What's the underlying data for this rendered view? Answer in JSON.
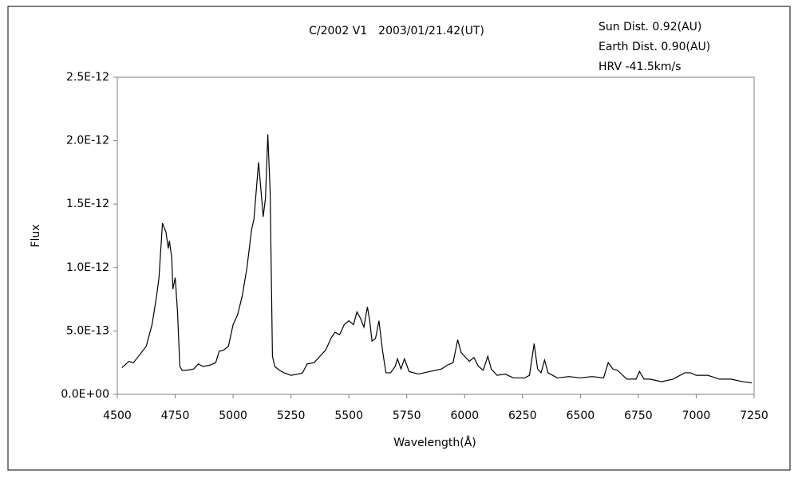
{
  "chart_data": {
    "type": "line",
    "title": "C/2002 V1　2003/01/21.42(UT)",
    "annotations": [
      "Sun Dist. 0.92(AU)",
      "Earth Dist. 0.90(AU)",
      "HRV -41.5km/s"
    ],
    "x_label": "Wavelength(Å)",
    "y_label": "Flux",
    "xlim": [
      4500,
      7250
    ],
    "xticks": [
      4500,
      4750,
      5000,
      5250,
      5500,
      5750,
      6000,
      6250,
      6500,
      6750,
      7000,
      7250
    ],
    "ylim": [
      0,
      2.5e-12
    ],
    "yticks": [
      {
        "value": 0,
        "label": "0.0E+00"
      },
      {
        "value": 5e-13,
        "label": "5.0E-13"
      },
      {
        "value": 1e-12,
        "label": "1.0E-12"
      },
      {
        "value": 1.5e-12,
        "label": "1.5E-12"
      },
      {
        "value": 2e-12,
        "label": "2.0E-12"
      },
      {
        "value": 2.5e-12,
        "label": "2.5E-12"
      }
    ],
    "grid": false,
    "x": [
      4520,
      4550,
      4570,
      4600,
      4625,
      4650,
      4670,
      4680,
      4695,
      4710,
      4720,
      4725,
      4735,
      4740,
      4750,
      4760,
      4770,
      4780,
      4800,
      4830,
      4850,
      4870,
      4900,
      4925,
      4940,
      4960,
      4980,
      5000,
      5020,
      5040,
      5060,
      5080,
      5090,
      5110,
      5120,
      5130,
      5140,
      5150,
      5160,
      5170,
      5180,
      5200,
      5220,
      5250,
      5280,
      5300,
      5320,
      5350,
      5375,
      5400,
      5425,
      5440,
      5460,
      5480,
      5500,
      5520,
      5535,
      5550,
      5565,
      5580,
      5590,
      5600,
      5615,
      5630,
      5645,
      5660,
      5680,
      5700,
      5710,
      5725,
      5740,
      5760,
      5800,
      5850,
      5900,
      5925,
      5950,
      5970,
      5985,
      6000,
      6020,
      6040,
      6060,
      6080,
      6100,
      6115,
      6140,
      6175,
      6210,
      6260,
      6280,
      6300,
      6315,
      6330,
      6345,
      6360,
      6400,
      6450,
      6500,
      6550,
      6600,
      6620,
      6640,
      6660,
      6700,
      6740,
      6755,
      6775,
      6800,
      6850,
      6900,
      6950,
      6975,
      7000,
      7050,
      7100,
      7150,
      7200,
      7240
    ],
    "series": [
      {
        "name": "Flux",
        "color": "#000000",
        "values": [
          2.1e-13,
          2.6e-13,
          2.5e-13,
          3.2e-13,
          3.8e-13,
          5.5e-13,
          7.8e-13,
          9.2e-13,
          1.35e-12,
          1.28e-12,
          1.15e-12,
          1.21e-12,
          1.08e-12,
          8.3e-13,
          9.2e-13,
          6.5e-13,
          2.2e-13,
          1.9e-13,
          1.9e-13,
          2e-13,
          2.4e-13,
          2.2e-13,
          2.3e-13,
          2.5e-13,
          3.4e-13,
          3.5e-13,
          3.8e-13,
          5.5e-13,
          6.3e-13,
          7.8e-13,
          1e-12,
          1.3e-12,
          1.38e-12,
          1.83e-12,
          1.62e-12,
          1.4e-12,
          1.55e-12,
          2.05e-12,
          1.6e-12,
          3e-13,
          2.2e-13,
          1.9e-13,
          1.7e-13,
          1.5e-13,
          1.6e-13,
          1.7e-13,
          2.4e-13,
          2.5e-13,
          3e-13,
          3.5e-13,
          4.5e-13,
          4.9e-13,
          4.7e-13,
          5.5e-13,
          5.8e-13,
          5.5e-13,
          6.5e-13,
          6e-13,
          5.3e-13,
          6.9e-13,
          5.8e-13,
          4.2e-13,
          4.4e-13,
          5.8e-13,
          3.5e-13,
          1.7e-13,
          1.7e-13,
          2.2e-13,
          2.8e-13,
          2e-13,
          2.8e-13,
          1.8e-13,
          1.6e-13,
          1.8e-13,
          2e-13,
          2.3e-13,
          2.5e-13,
          4.3e-13,
          3.3e-13,
          3e-13,
          2.6e-13,
          2.9e-13,
          2.2e-13,
          1.9e-13,
          3e-13,
          2e-13,
          1.5e-13,
          1.6e-13,
          1.3e-13,
          1.3e-13,
          1.5e-13,
          4e-13,
          2e-13,
          1.7e-13,
          2.7e-13,
          1.7e-13,
          1.3e-13,
          1.4e-13,
          1.3e-13,
          1.4e-13,
          1.3e-13,
          2.5e-13,
          2e-13,
          1.9e-13,
          1.2e-13,
          1.2e-13,
          1.8e-13,
          1.2e-13,
          1.2e-13,
          1e-13,
          1.2e-13,
          1.7e-13,
          1.7e-13,
          1.5e-13,
          1.5e-13,
          1.2e-13,
          1.2e-13,
          1e-13,
          9e-14
        ]
      }
    ]
  }
}
